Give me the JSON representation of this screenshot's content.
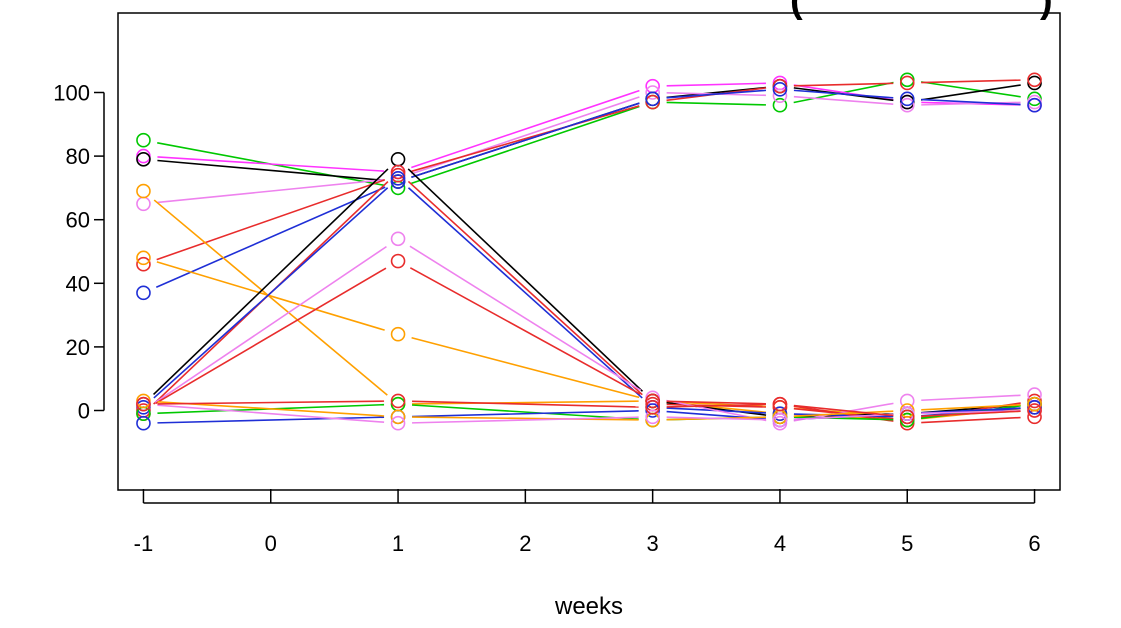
{
  "chart_data": {
    "type": "line",
    "title_fragment": "(",
    "title_fragment_right": ")",
    "xlabel": "weeks",
    "ylabel": "",
    "x_ticks": [
      -1,
      0,
      1,
      2,
      3,
      4,
      5,
      6
    ],
    "y_ticks": [
      0,
      20,
      40,
      60,
      80,
      100
    ],
    "xlim": [
      -1.2,
      6.2
    ],
    "ylim": [
      -25,
      125
    ],
    "x": [
      -1,
      1,
      3,
      4,
      5,
      6
    ],
    "grid": false,
    "legend": "none",
    "marker": "open-circle",
    "series": [
      {
        "color": "#00c800",
        "values": [
          85,
          70,
          97,
          96,
          104,
          98
        ]
      },
      {
        "color": "#ff33ff",
        "values": [
          80,
          75,
          102,
          103,
          97,
          96
        ]
      },
      {
        "color": "#000000",
        "values": [
          79,
          72,
          98,
          102,
          97,
          103
        ]
      },
      {
        "color": "#ee82ee",
        "values": [
          65,
          73,
          100,
          99,
          96,
          97
        ]
      },
      {
        "color": "#e82c2c",
        "values": [
          46,
          74,
          97,
          102,
          103,
          104
        ]
      },
      {
        "color": "#1f2fd6",
        "values": [
          37,
          72,
          98,
          101,
          98,
          96
        ]
      },
      {
        "color": "#ffa000",
        "values": [
          69,
          2,
          3,
          1,
          -2,
          0
        ]
      },
      {
        "color": "#ffa000",
        "values": [
          48,
          24,
          3,
          -1,
          -3,
          1
        ]
      },
      {
        "color": "#000000",
        "values": [
          2,
          79,
          3,
          -2,
          -1,
          2
        ]
      },
      {
        "color": "#e82c2c",
        "values": [
          -1,
          75,
          2,
          1,
          -3,
          3
        ]
      },
      {
        "color": "#1f2fd6",
        "values": [
          1,
          73,
          1,
          -1,
          -2,
          1
        ]
      },
      {
        "color": "#ee82ee",
        "values": [
          0,
          54,
          4,
          -4,
          3,
          5
        ]
      },
      {
        "color": "#e82c2c",
        "values": [
          0,
          47,
          3,
          2,
          -4,
          -2
        ]
      },
      {
        "color": "#00c800",
        "values": [
          -1,
          2,
          -3,
          -2,
          -3,
          2
        ]
      },
      {
        "color": "#1f2fd6",
        "values": [
          -4,
          -2,
          0,
          -3,
          -1,
          1
        ]
      },
      {
        "color": "#ffa000",
        "values": [
          3,
          -2,
          -3,
          -2,
          0,
          2
        ]
      },
      {
        "color": "#ee82ee",
        "values": [
          2,
          -4,
          -2,
          -3,
          -1,
          0
        ]
      },
      {
        "color": "#e82c2c",
        "values": [
          2,
          3,
          1,
          2,
          -2,
          0
        ]
      }
    ]
  }
}
